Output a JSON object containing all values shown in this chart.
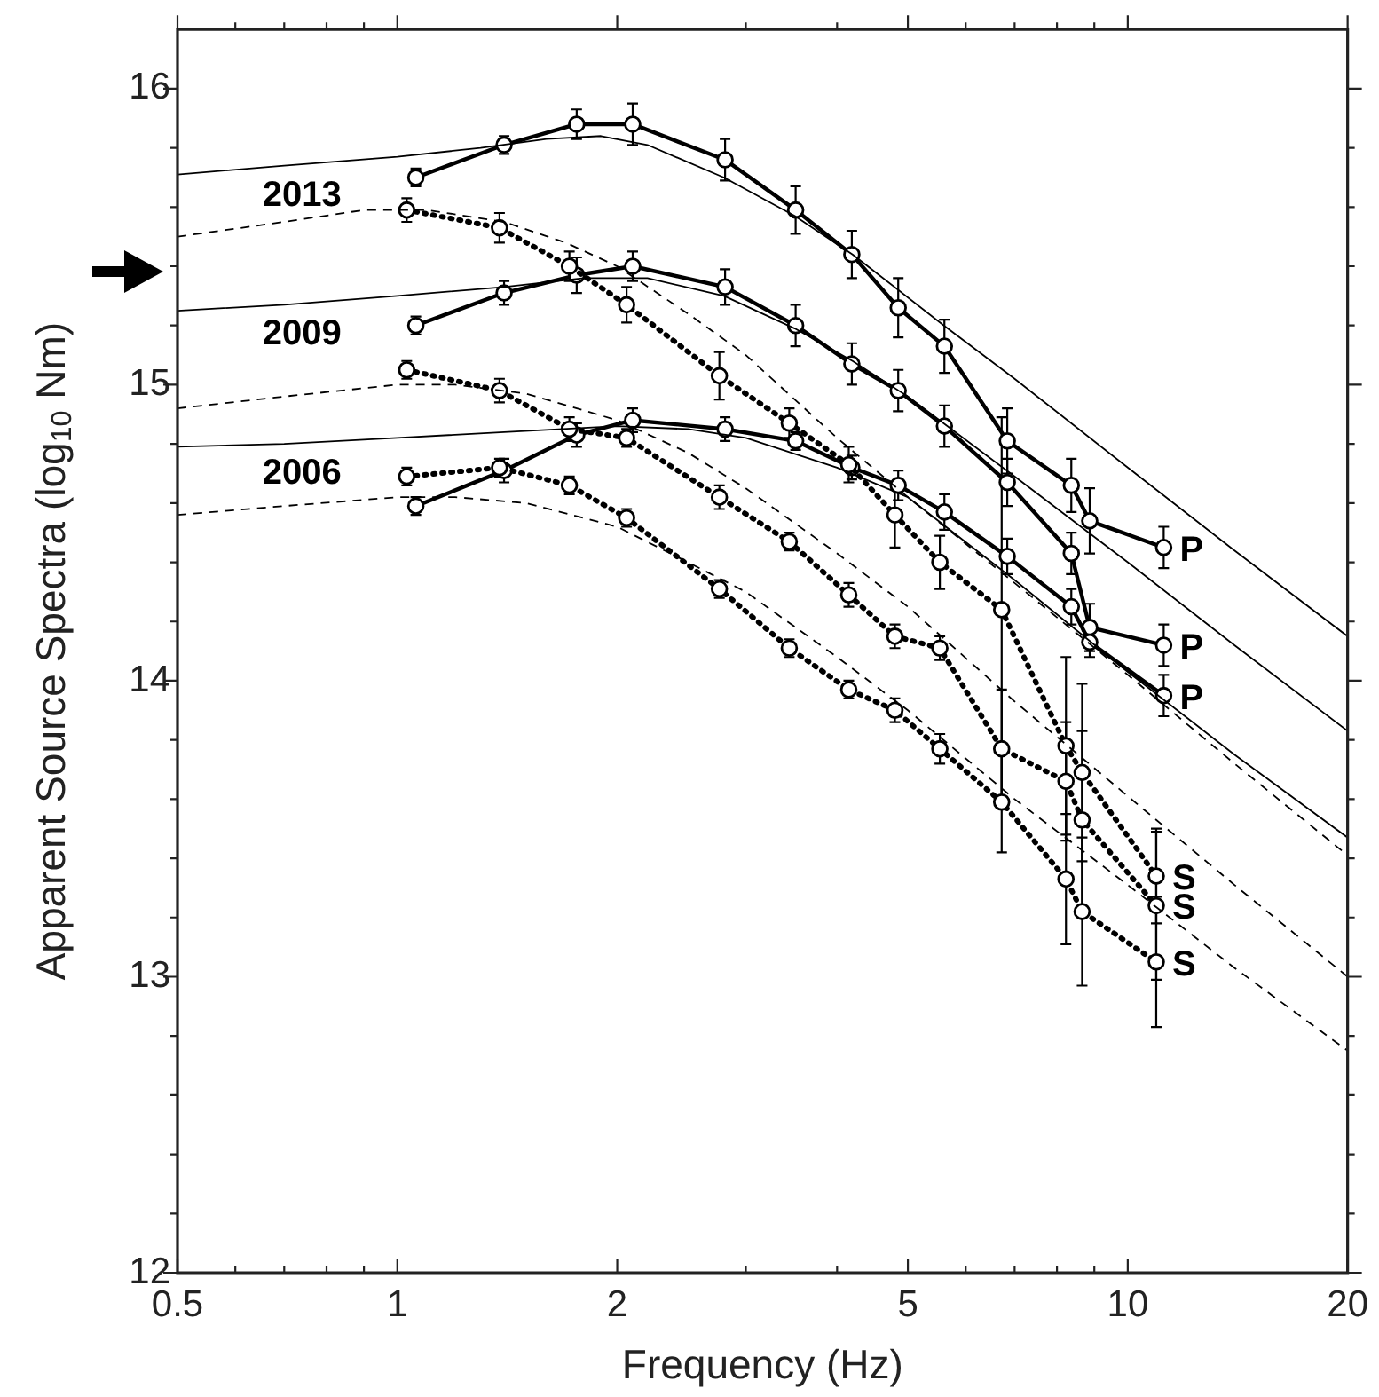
{
  "chart_data": {
    "type": "line",
    "xlabel": "Frequency (Hz)",
    "ylabel": "Apparent Source Spectra (log$_{10}$ Nm)",
    "log": "x",
    "legend": false,
    "grid": false,
    "xlim": [
      0.5,
      20
    ],
    "ylim": [
      12,
      16.2
    ],
    "xticks": [
      0.5,
      {
        "value": 0.6,
        "label": null
      },
      {
        "value": 0.7,
        "label": null
      },
      {
        "value": 0.8,
        "label": null
      },
      {
        "value": 0.9,
        "label": null
      },
      1,
      2,
      {
        "value": 3,
        "label": null
      },
      {
        "value": 4,
        "label": null
      },
      5,
      {
        "value": 6,
        "label": null
      },
      {
        "value": 7,
        "label": null
      },
      {
        "value": 8,
        "label": null
      },
      {
        "value": 9,
        "label": null
      },
      10,
      20
    ],
    "yticks": [
      12,
      {
        "value": 12.2,
        "label": null
      },
      {
        "value": 12.4,
        "label": null
      },
      {
        "value": 12.6,
        "label": null
      },
      {
        "value": 12.8,
        "label": null
      },
      13,
      {
        "value": 13.2,
        "label": null
      },
      {
        "value": 13.4,
        "label": null
      },
      {
        "value": 13.6,
        "label": null
      },
      {
        "value": 13.8,
        "label": null
      },
      14,
      {
        "value": 14.2,
        "label": null
      },
      {
        "value": 14.4,
        "label": null
      },
      {
        "value": 14.6,
        "label": null
      },
      {
        "value": 14.8,
        "label": null
      },
      15,
      {
        "value": 15.2,
        "label": null
      },
      {
        "value": 15.4,
        "label": null
      },
      {
        "value": 15.6,
        "label": null
      },
      {
        "value": 15.8,
        "label": null
      },
      16
    ],
    "series": [
      {
        "type": "line",
        "color": "#000000",
        "line_style": "solid",
        "marker": "circle",
        "x": [
          1.06,
          1.4,
          1.76,
          2.1,
          2.81,
          3.51,
          4.19,
          4.85,
          5.61,
          6.84,
          8.37,
          8.87,
          11.2
        ],
        "values": [
          15.7,
          15.81,
          15.88,
          15.88,
          15.76,
          15.59,
          15.44,
          15.26,
          15.13,
          14.81,
          14.66,
          14.54,
          14.45
        ],
        "errors": [
          0.03,
          0.03,
          0.05,
          0.07,
          0.07,
          0.08,
          0.08,
          0.1,
          0.09,
          0.11,
          0.09,
          0.11,
          0.07
        ]
      },
      {
        "type": "line",
        "color": "#000000",
        "line_style": "solid",
        "marker": "circle",
        "x": [
          1.06,
          1.4,
          1.76,
          2.1,
          2.81,
          3.51,
          4.19,
          4.85,
          5.61,
          6.84,
          8.37,
          8.87,
          11.2
        ],
        "values": [
          15.2,
          15.31,
          15.37,
          15.4,
          15.33,
          15.2,
          15.07,
          14.98,
          14.86,
          14.67,
          14.43,
          14.18,
          14.12
        ],
        "errors": [
          0.03,
          0.04,
          0.06,
          0.05,
          0.06,
          0.07,
          0.07,
          0.07,
          0.07,
          0.08,
          0.07,
          0.08,
          0.07
        ]
      },
      {
        "type": "line",
        "color": "#000000",
        "line_style": "solid",
        "marker": "circle",
        "x": [
          1.06,
          1.4,
          1.76,
          2.1,
          2.81,
          3.51,
          4.19,
          4.85,
          5.61,
          6.84,
          8.37,
          8.87,
          11.2
        ],
        "values": [
          14.59,
          14.71,
          14.83,
          14.88,
          14.85,
          14.81,
          14.72,
          14.66,
          14.57,
          14.42,
          14.25,
          14.13,
          13.95
        ],
        "errors": [
          0.03,
          0.04,
          0.04,
          0.04,
          0.04,
          0.03,
          0.04,
          0.05,
          0.06,
          0.06,
          0.06,
          0.05,
          0.07
        ]
      },
      {
        "type": "line",
        "color": "#000000",
        "line_style": "dotted",
        "marker": "circle",
        "x": [
          1.03,
          1.38,
          1.72,
          2.06,
          2.76,
          3.44,
          4.15,
          4.8,
          5.53,
          6.72,
          8.23,
          8.66,
          10.94
        ],
        "values": [
          15.59,
          15.53,
          15.4,
          15.27,
          15.03,
          14.87,
          14.73,
          14.56,
          14.4,
          14.24,
          13.78,
          13.69,
          13.34
        ],
        "errors": [
          0.04,
          0.05,
          0.05,
          0.06,
          0.08,
          0.05,
          0.06,
          0.11,
          0.09,
          0.65,
          0.3,
          0.3,
          0.16
        ]
      },
      {
        "type": "line",
        "color": "#000000",
        "line_style": "dotted",
        "marker": "circle",
        "x": [
          1.03,
          1.38,
          1.72,
          2.06,
          2.76,
          3.44,
          4.15,
          4.8,
          5.53,
          6.72,
          8.23,
          8.66,
          10.94
        ],
        "values": [
          15.05,
          14.98,
          14.85,
          14.82,
          14.62,
          14.47,
          14.29,
          14.15,
          14.11,
          13.77,
          13.66,
          13.53,
          13.24
        ],
        "errors": [
          0.03,
          0.04,
          0.04,
          0.03,
          0.04,
          0.03,
          0.04,
          0.04,
          0.04,
          0.2,
          0.2,
          0.3,
          0.25
        ]
      },
      {
        "type": "line",
        "color": "#000000",
        "line_style": "dotted",
        "marker": "circle",
        "x": [
          1.03,
          1.38,
          1.72,
          2.06,
          2.76,
          3.44,
          4.15,
          4.8,
          5.53,
          6.72,
          8.23,
          8.66,
          10.94
        ],
        "values": [
          14.69,
          14.72,
          14.66,
          14.55,
          14.31,
          14.11,
          13.97,
          13.9,
          13.77,
          13.59,
          13.33,
          13.22,
          13.05
        ],
        "errors": [
          0.03,
          0.03,
          0.03,
          0.03,
          0.03,
          0.03,
          0.03,
          0.04,
          0.05,
          0.17,
          0.22,
          0.25,
          0.22
        ]
      },
      {
        "type": "line",
        "color": "#000000",
        "line_style": "solid",
        "marker": "none",
        "x": [
          0.5,
          0.7,
          1,
          1.3,
          1.6,
          1.9,
          2.2,
          2.8,
          3.5,
          4.2,
          5.6,
          7,
          10,
          14,
          20
        ],
        "values": [
          15.71,
          15.74,
          15.77,
          15.8,
          15.83,
          15.84,
          15.81,
          15.7,
          15.57,
          15.44,
          15.2,
          15.02,
          14.72,
          14.44,
          14.15
        ]
      },
      {
        "type": "line",
        "color": "#000000",
        "line_style": "solid",
        "marker": "none",
        "x": [
          0.5,
          0.7,
          1,
          1.4,
          1.8,
          2.2,
          2.8,
          3.5,
          4.2,
          5,
          7,
          10,
          14,
          20
        ],
        "values": [
          15.25,
          15.27,
          15.3,
          15.33,
          15.36,
          15.36,
          15.3,
          15.19,
          15.08,
          14.96,
          14.69,
          14.4,
          14.12,
          13.83
        ]
      },
      {
        "type": "line",
        "color": "#000000",
        "line_style": "solid",
        "marker": "none",
        "x": [
          0.5,
          0.7,
          1,
          1.4,
          2,
          2.5,
          3,
          4,
          5,
          7,
          10,
          14,
          20
        ],
        "values": [
          14.79,
          14.8,
          14.82,
          14.84,
          14.86,
          14.85,
          14.82,
          14.72,
          14.62,
          14.34,
          14.03,
          13.75,
          13.47
        ]
      },
      {
        "type": "line",
        "color": "#000000",
        "line_style": "dashed",
        "marker": "none",
        "x": [
          0.5,
          0.7,
          0.9,
          1.1,
          1.4,
          1.7,
          2,
          2.5,
          3,
          4,
          5,
          7,
          10,
          14,
          20
        ],
        "values": [
          15.5,
          15.55,
          15.59,
          15.59,
          15.55,
          15.48,
          15.4,
          15.24,
          15.1,
          14.82,
          14.62,
          14.33,
          14.02,
          13.72,
          13.41
        ]
      },
      {
        "type": "line",
        "color": "#000000",
        "line_style": "dashed",
        "marker": "none",
        "x": [
          0.5,
          0.7,
          1,
          1.2,
          1.5,
          2,
          2.5,
          3,
          4,
          5,
          7,
          10,
          14,
          20
        ],
        "values": [
          14.92,
          14.96,
          15.0,
          15.0,
          14.97,
          14.88,
          14.77,
          14.65,
          14.43,
          14.25,
          13.93,
          13.61,
          13.31,
          13.0
        ]
      },
      {
        "type": "line",
        "color": "#000000",
        "line_style": "dashed",
        "marker": "none",
        "x": [
          0.5,
          0.7,
          1,
          1.2,
          1.5,
          2,
          2.5,
          3,
          4,
          5,
          7,
          10,
          14,
          20
        ],
        "values": [
          14.56,
          14.59,
          14.62,
          14.62,
          14.6,
          14.52,
          14.4,
          14.3,
          14.08,
          13.9,
          13.6,
          13.31,
          13.03,
          12.75
        ]
      }
    ],
    "annotations": [
      {
        "text": "2013",
        "x": 0.7,
        "y": 15.74
      },
      {
        "text": "2009",
        "x": 0.7,
        "y": 15.27
      },
      {
        "text": "2006",
        "x": 0.7,
        "y": 14.8
      },
      {
        "text": "P",
        "x": 11.2,
        "y": 14.45
      },
      {
        "text": "P",
        "x": 11.2,
        "y": 14.12
      },
      {
        "text": "P",
        "x": 11.2,
        "y": 13.95
      },
      {
        "text": "S",
        "x": 10.94,
        "y": 13.34
      },
      {
        "text": "S",
        "x": 10.94,
        "y": 13.24
      },
      {
        "text": "S",
        "x": 10.94,
        "y": 13.05
      }
    ]
  }
}
